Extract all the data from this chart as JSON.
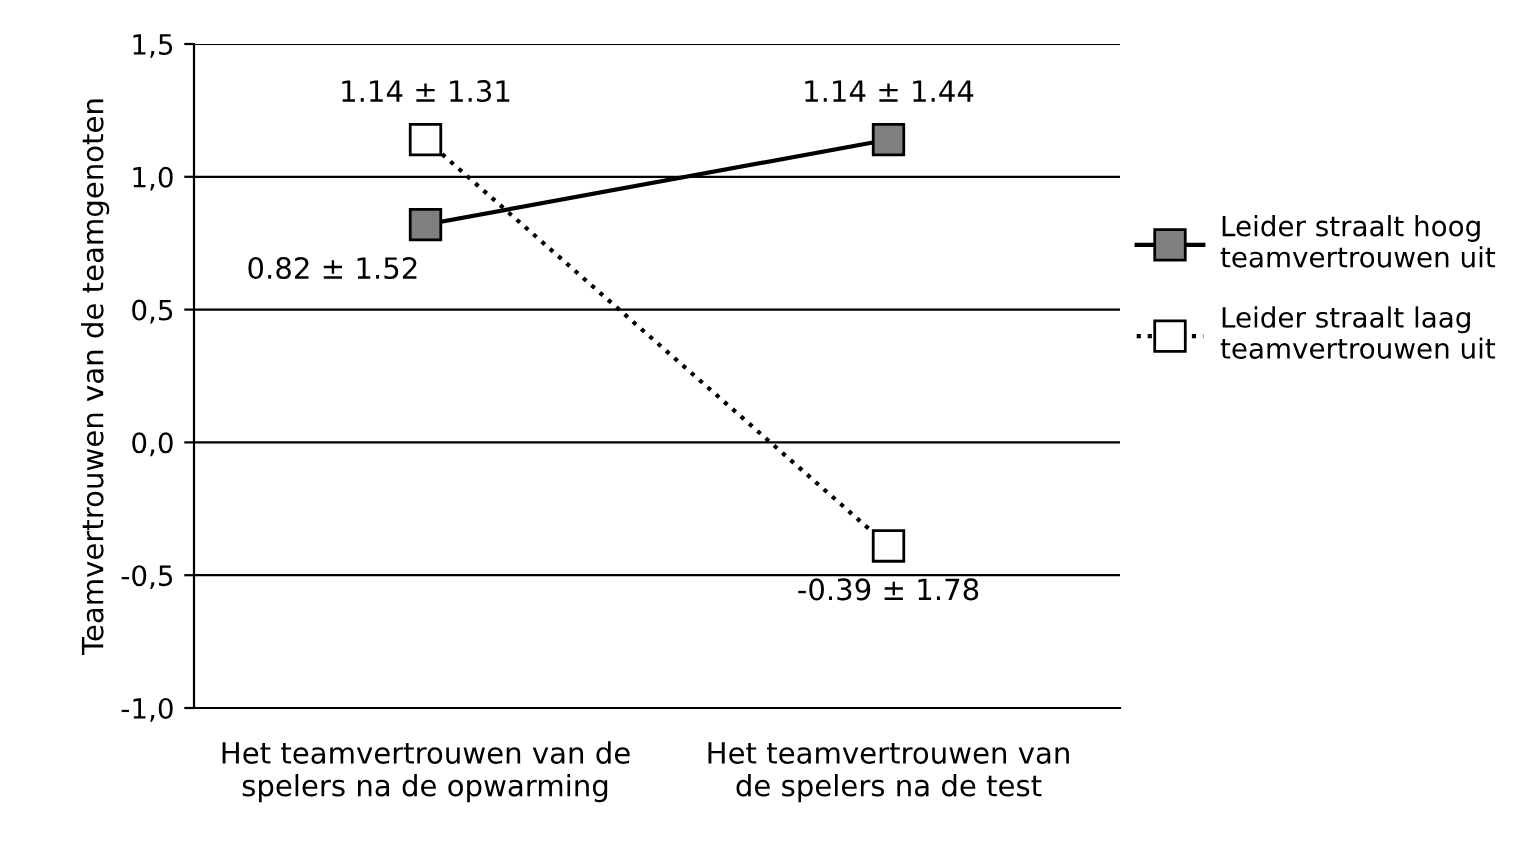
{
  "chart_data": {
    "type": "line",
    "ylabel": "Teamvertrouwen van de teamgenoten",
    "categories": [
      "Het teamvertrouwen van de\nspelers na de opwarming",
      "Het teamvertrouwen van\nde spelers na de test"
    ],
    "series": [
      {
        "name": "Leider straalt hoog\nteamvertrouwen uit",
        "color": "#7f7f7f",
        "values": [
          0.82,
          1.14
        ],
        "value_labels": [
          "0.82 ± 1.52",
          "1.14 ± 1.44"
        ],
        "line_style": "solid"
      },
      {
        "name": "Leider straalt laag\nteamvertrouwen uit",
        "color": "#ffffff",
        "values": [
          1.14,
          -0.39
        ],
        "value_labels": [
          "1.14 ± 1.31",
          "-0.39 ± 1.78"
        ],
        "line_style": "dotted"
      }
    ],
    "ylim": [
      -1.0,
      1.5
    ],
    "yticks": [
      {
        "value": -1.0,
        "label": "-1,0"
      },
      {
        "value": -0.5,
        "label": "-0,5"
      },
      {
        "value": 0.0,
        "label": "0,0"
      },
      {
        "value": 0.5,
        "label": "0,5"
      },
      {
        "value": 1.0,
        "label": "1,0"
      },
      {
        "value": 1.5,
        "label": "1,5"
      }
    ],
    "grid": "y",
    "legend": "right",
    "marker": "square"
  }
}
